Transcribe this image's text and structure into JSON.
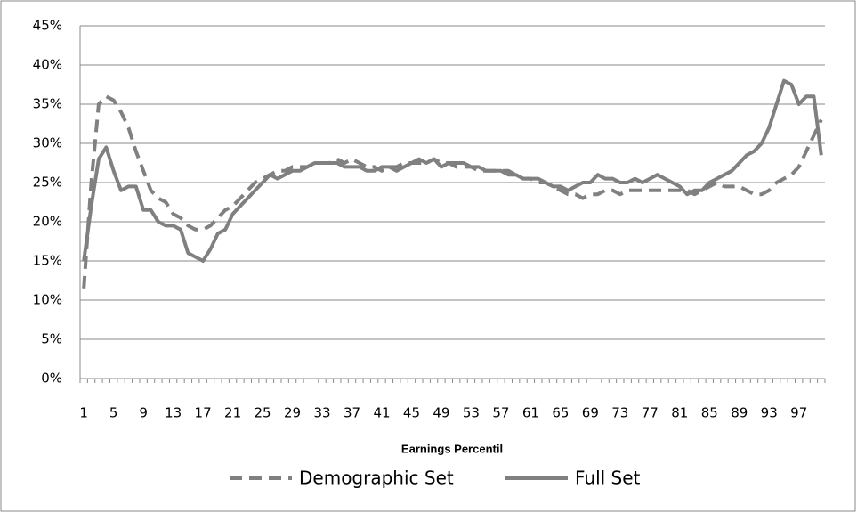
{
  "chart_data": {
    "type": "line",
    "x_label": "Earnings Percentil",
    "categories": [
      1,
      null,
      null,
      null,
      5,
      null,
      null,
      null,
      9,
      null,
      null,
      null,
      13,
      null,
      null,
      null,
      17,
      null,
      null,
      null,
      21,
      null,
      null,
      null,
      25,
      null,
      null,
      null,
      29,
      null,
      null,
      null,
      33,
      null,
      null,
      null,
      37,
      null,
      null,
      null,
      41,
      null,
      null,
      null,
      45,
      null,
      null,
      null,
      49,
      null,
      null,
      null,
      53,
      null,
      null,
      null,
      57,
      null,
      null,
      null,
      61,
      null,
      null,
      null,
      65,
      null,
      null,
      null,
      69,
      null,
      null,
      null,
      73,
      null,
      null,
      null,
      77,
      null,
      null,
      null,
      81,
      null,
      null,
      null,
      85,
      null,
      null,
      null,
      89,
      null,
      null,
      null,
      93,
      null,
      null,
      null,
      97,
      null,
      null,
      null
    ],
    "series": [
      {
        "name": "Demographic Set",
        "color": "#808080",
        "dashed": true,
        "values": [
          11.5,
          25,
          35,
          36,
          35.5,
          34,
          32,
          29,
          26.5,
          24,
          23,
          22.5,
          21,
          20.5,
          19.5,
          19,
          19,
          19.5,
          20.5,
          21.5,
          22,
          23,
          24,
          25,
          25.5,
          26,
          26.5,
          26.5,
          27,
          27,
          27,
          27.5,
          27.5,
          27.5,
          28,
          27.5,
          28,
          27.5,
          27,
          27,
          26.5,
          27,
          27,
          27.5,
          27.5,
          27.5,
          27.5,
          28,
          27.5,
          27.5,
          27,
          27,
          27,
          26.5,
          26.5,
          26.5,
          26.5,
          26.5,
          26,
          25.5,
          25.5,
          25,
          25,
          24.5,
          24,
          23.5,
          23.5,
          23,
          23.5,
          23.5,
          24,
          24,
          23.5,
          24,
          24,
          24,
          24,
          24,
          24,
          24,
          24,
          24,
          23.5,
          24,
          24.5,
          25,
          24.5,
          24.5,
          24.5,
          24,
          23.5,
          23.5,
          24,
          25,
          25.5,
          26,
          27,
          29,
          31,
          33
        ]
      },
      {
        "name": "Full Set",
        "color": "#808080",
        "dashed": false,
        "values": [
          15,
          22,
          28,
          29.5,
          26.5,
          24,
          24.5,
          24.5,
          21.5,
          21.5,
          20,
          19.5,
          19.5,
          19,
          16,
          15.5,
          15,
          16.5,
          18.5,
          19,
          21,
          22,
          23,
          24,
          25,
          26,
          25.5,
          26,
          26.5,
          26.5,
          27,
          27.5,
          27.5,
          27.5,
          27.5,
          27,
          27,
          27,
          26.5,
          26.5,
          27,
          27,
          26.5,
          27,
          27.5,
          28,
          27.5,
          28,
          27,
          27.5,
          27.5,
          27.5,
          27,
          27,
          26.5,
          26.5,
          26.5,
          26,
          26,
          25.5,
          25.5,
          25.5,
          25,
          24.5,
          24.5,
          24,
          24.5,
          25,
          25,
          26,
          25.5,
          25.5,
          25,
          25,
          25.5,
          25,
          25.5,
          26,
          25.5,
          25,
          24.5,
          23.5,
          24,
          24,
          25,
          25.5,
          26,
          26.5,
          27.5,
          28.5,
          29,
          30,
          32,
          35,
          38,
          37.5,
          35,
          36,
          36,
          28.5
        ]
      }
    ],
    "ylim": [
      0,
      45
    ],
    "yticks": [
      {
        "value": 0,
        "label": "0%"
      },
      {
        "value": 5,
        "label": "5%"
      },
      {
        "value": 10,
        "label": "10%"
      },
      {
        "value": 15,
        "label": "15%"
      },
      {
        "value": 20,
        "label": "20%"
      },
      {
        "value": 25,
        "label": "25%"
      },
      {
        "value": 30,
        "label": "30%"
      },
      {
        "value": 35,
        "label": "35%"
      },
      {
        "value": 40,
        "label": "40%"
      },
      {
        "value": 45,
        "label": "45%"
      }
    ],
    "grid": true,
    "legend": "bottom"
  }
}
